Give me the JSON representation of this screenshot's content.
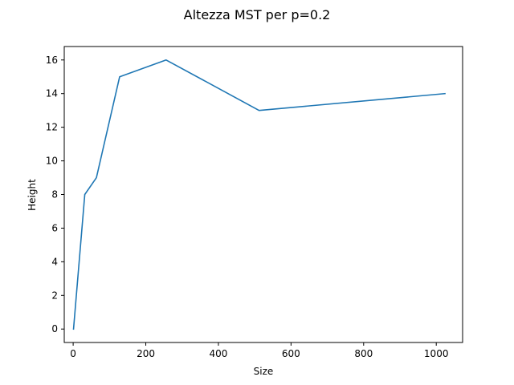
{
  "chart_data": {
    "type": "line",
    "title": "Altezza MST per p=0.2",
    "xlabel": "Size",
    "ylabel": "Height",
    "xlim": [
      -24.55,
      1072.55
    ],
    "ylim": [
      -0.8,
      16.8
    ],
    "xticks": [
      0,
      200,
      400,
      600,
      800,
      1000
    ],
    "yticks": [
      0,
      2,
      4,
      6,
      8,
      10,
      12,
      14,
      16
    ],
    "grid": false,
    "series": [
      {
        "color": "#1f77b4",
        "x": [
          1,
          32,
          64,
          128,
          256,
          512,
          1024
        ],
        "y": [
          0,
          8,
          9,
          15,
          16,
          13,
          14
        ]
      }
    ]
  }
}
